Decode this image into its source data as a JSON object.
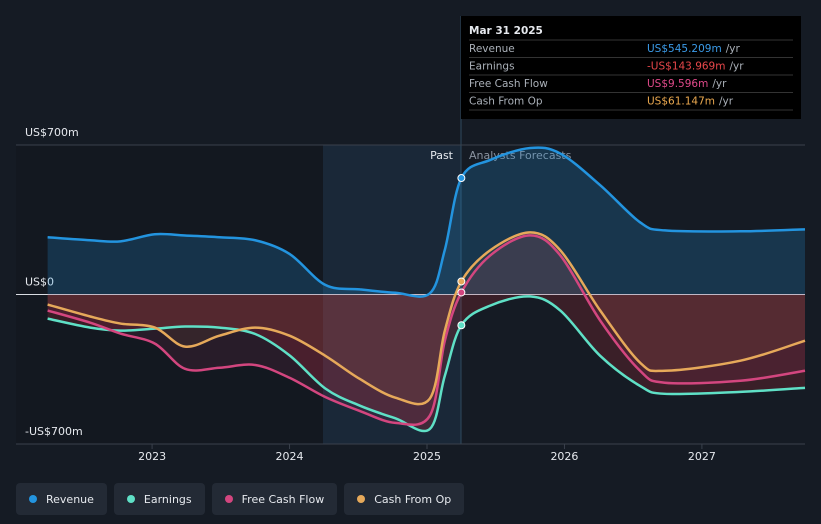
{
  "chart_data": {
    "type": "line",
    "x": [
      2022.24,
      2022.55,
      2022.77,
      2023.02,
      2023.24,
      2023.49,
      2023.75,
      2024.0,
      2024.26,
      2024.51,
      2024.77,
      2025.02,
      2025.13,
      2025.25,
      2025.46,
      2025.75,
      2025.97,
      2026.26,
      2026.55,
      2026.73,
      2027.28,
      2027.75
    ],
    "series": [
      {
        "name": "Revenue",
        "color": "#2394df",
        "values": [
          268,
          254,
          249,
          282,
          276,
          268,
          254,
          190,
          45,
          24,
          8,
          5,
          210,
          545.209,
          630,
          686,
          660,
          512,
          338,
          300,
          296,
          305
        ]
      },
      {
        "name": "Earnings",
        "color": "#5fe0c6",
        "values": [
          -113,
          -155,
          -169,
          -160,
          -150,
          -155,
          -185,
          -285,
          -440,
          -520,
          -580,
          -630,
          -380,
          -143.969,
          -52,
          -9,
          -75,
          -287,
          -428,
          -465,
          -456,
          -437
        ]
      },
      {
        "name": "Free Cash Flow",
        "color": "#d3467f",
        "values": [
          -75,
          -132,
          -183,
          -230,
          -348,
          -343,
          -330,
          -390,
          -480,
          -545,
          -601,
          -568,
          -216,
          9.596,
          183,
          277,
          183,
          -122,
          -357,
          -413,
          -404,
          -357
        ]
      },
      {
        "name": "Cash From Op",
        "color": "#e6a95a",
        "values": [
          -47,
          -103,
          -136,
          -155,
          -244,
          -193,
          -155,
          -193,
          -287,
          -395,
          -483,
          -488,
          -169,
          61.147,
          207,
          291,
          207,
          -75,
          -319,
          -357,
          -310,
          -216
        ]
      }
    ],
    "xlim": [
      2022.01,
      2027.75
    ],
    "xticks": [
      2023,
      2024,
      2025,
      2026,
      2027
    ],
    "ylim": [
      -700,
      700
    ],
    "yticks": [
      {
        "value": 700,
        "label": "US$700m"
      },
      {
        "value": 0,
        "label": "US$0"
      },
      {
        "value": -700,
        "label": "-US$700m"
      }
    ],
    "past_label": "Past",
    "forecast_label": "Analysts Forecasts",
    "tooltip": {
      "title": "Mar 31 2025",
      "rows": [
        {
          "label": "Revenue",
          "value": "US$545.209m",
          "unit": "/yr",
          "color": "#3b9be8"
        },
        {
          "label": "Earnings",
          "value": "-US$143.969m",
          "unit": "/yr",
          "color": "#e8474a"
        },
        {
          "label": "Free Cash Flow",
          "value": "US$9.596m",
          "unit": "/yr",
          "color": "#e04a8a"
        },
        {
          "label": "Cash From Op",
          "value": "US$61.147m",
          "unit": "/yr",
          "color": "#eaa84f"
        }
      ]
    }
  }
}
